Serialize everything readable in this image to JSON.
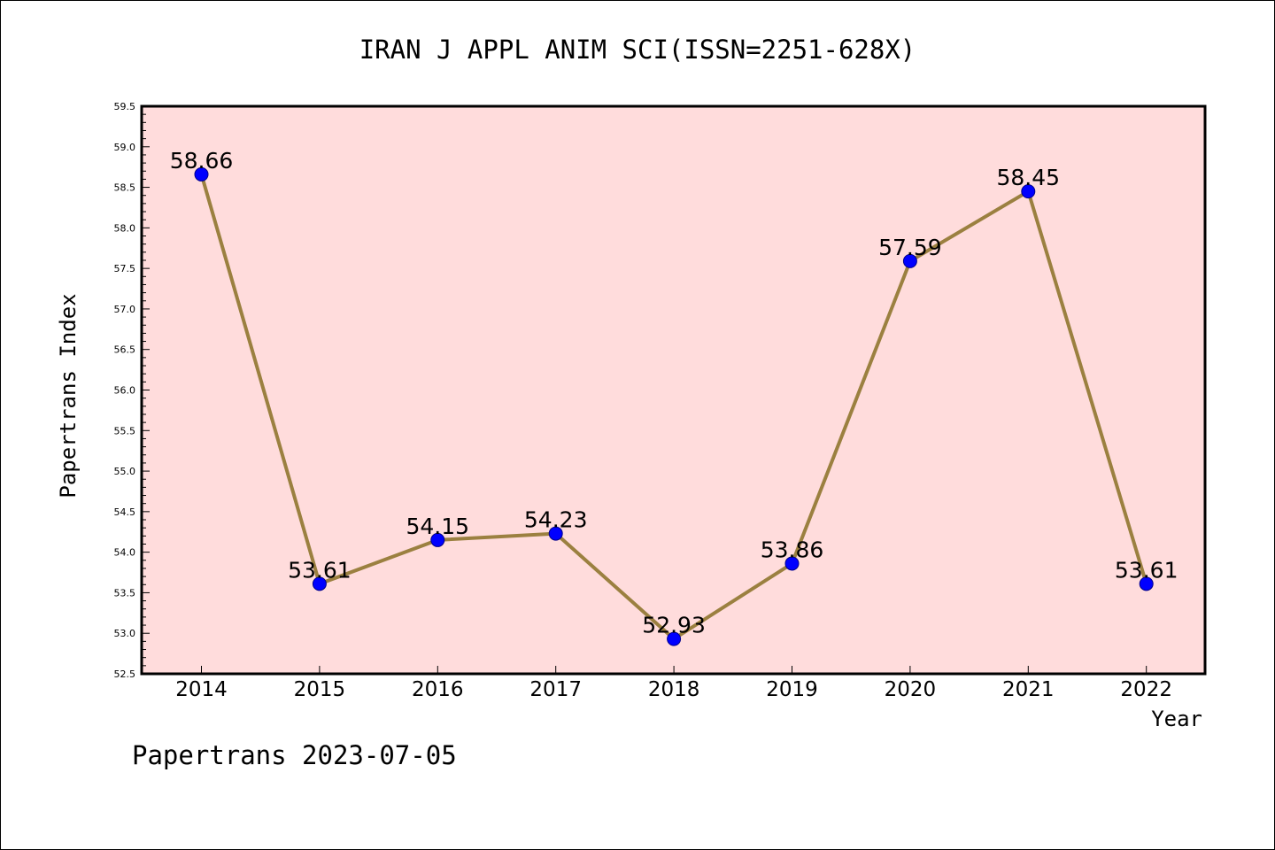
{
  "chart_data": {
    "type": "line",
    "title": "IRAN J APPL ANIM SCI(ISSN=2251-628X)",
    "xlabel": "Year",
    "ylabel": "Papertrans Index",
    "x": [
      "2014",
      "2015",
      "2016",
      "2017",
      "2018",
      "2019",
      "2020",
      "2021",
      "2022"
    ],
    "series": [
      {
        "values": [
          58.66,
          53.61,
          54.15,
          54.23,
          52.93,
          53.86,
          57.59,
          58.45,
          53.61
        ]
      }
    ],
    "data_labels": [
      "58.66",
      "53.61",
      "54.15",
      "54.23",
      "52.93",
      "53.86",
      "57.59",
      "58.45",
      "53.61"
    ],
    "ylim": [
      52.5,
      59.5
    ],
    "yticks": [
      "52.5",
      "53.0",
      "53.5",
      "54.0",
      "54.5",
      "55.0",
      "55.5",
      "56.0",
      "56.5",
      "57.0",
      "57.5",
      "58.0",
      "58.5",
      "59.0",
      "59.5"
    ],
    "grid": false,
    "colors": {
      "plot_background": "#ffdcdc",
      "line": "#9b8040",
      "marker": "#0000ff"
    }
  },
  "footer": "Papertrans 2023-07-05"
}
